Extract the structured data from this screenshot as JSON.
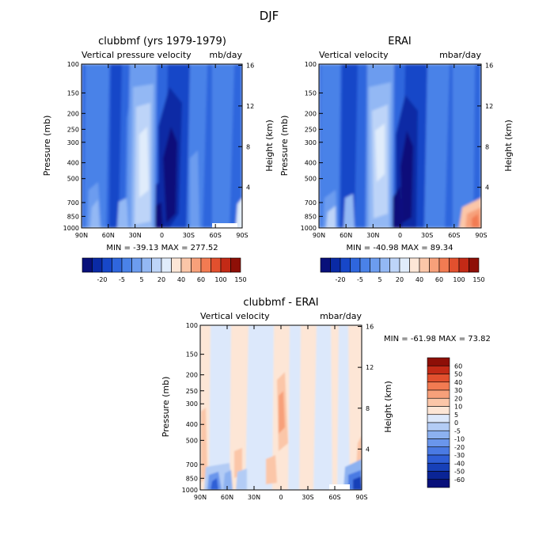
{
  "figure": {
    "title": "DJF"
  },
  "chart_data": [
    {
      "type": "heatmap",
      "title": "clubbmf (yrs 1979-1979)",
      "subtitle_left": "Vertical pressure velocity",
      "subtitle_right": "mb/day",
      "xlabel": "",
      "ylabel": "Pressure (mb)",
      "ylabel_right": "Height (km)",
      "x_ticks": [
        "90N",
        "60N",
        "30N",
        "0",
        "30S",
        "60S",
        "90S"
      ],
      "y_ticks": [
        100,
        150,
        200,
        250,
        300,
        400,
        500,
        700,
        850,
        1000
      ],
      "y2_ticks": [
        4,
        8,
        12,
        16
      ],
      "xlim": [
        "90N",
        "90S"
      ],
      "ylim": [
        1000,
        100
      ],
      "y_scale": "log",
      "stats": "MIN = -39.13   MAX = 277.52",
      "colorbar_labels": [
        "-20",
        "-5",
        "5",
        "20",
        "40",
        "60",
        "100",
        "150"
      ]
    },
    {
      "type": "heatmap",
      "title": "ERAI",
      "subtitle_left": "Vertical velocity",
      "subtitle_right": "mbar/day",
      "xlabel": "",
      "ylabel": "Pressure (mb)",
      "ylabel_right": "Height (km)",
      "x_ticks": [
        "90N",
        "60N",
        "30N",
        "0",
        "30S",
        "60S",
        "90S"
      ],
      "y_ticks": [
        100,
        150,
        200,
        250,
        300,
        400,
        500,
        700,
        850,
        1000
      ],
      "y2_ticks": [
        4,
        8,
        12,
        16
      ],
      "xlim": [
        "90N",
        "90S"
      ],
      "ylim": [
        1000,
        100
      ],
      "y_scale": "log",
      "stats": "MIN = -40.98   MAX =  89.34",
      "colorbar_labels": [
        "-20",
        "-5",
        "5",
        "20",
        "40",
        "60",
        "100",
        "150"
      ]
    },
    {
      "type": "heatmap",
      "title": "clubbmf - ERAI",
      "subtitle_left": "Vertical velocity",
      "subtitle_right": "mbar/day",
      "xlabel": "",
      "ylabel": "Pressure (mb)",
      "ylabel_right": "Height (km)",
      "x_ticks": [
        "90N",
        "60N",
        "30N",
        "0",
        "30S",
        "60S",
        "90S"
      ],
      "y_ticks": [
        100,
        150,
        200,
        250,
        300,
        400,
        500,
        700,
        850,
        1000
      ],
      "y2_ticks": [
        4,
        8,
        12,
        16
      ],
      "xlim": [
        "90N",
        "90S"
      ],
      "ylim": [
        1000,
        100
      ],
      "y_scale": "log",
      "stats": "MIN = -61.98   MAX =   73.82",
      "colorbar_labels": [
        "60",
        "50",
        "40",
        "30",
        "20",
        "10",
        "5",
        "0",
        "-5",
        "-10",
        "-20",
        "-30",
        "-40",
        "-50",
        "-60"
      ]
    }
  ],
  "colors": {
    "abs_scale": [
      "#08107a",
      "#0a2aa5",
      "#1747c8",
      "#2f66dd",
      "#4a82e8",
      "#6c9cef",
      "#93b8f4",
      "#bdd4f8",
      "#e0ecfb",
      "#fde6d6",
      "#fbc6a8",
      "#f7a07a",
      "#f27b52",
      "#e2502e",
      "#c32a16",
      "#8e0f07"
    ],
    "diff_scale": [
      "#8e0f07",
      "#c32a16",
      "#e2502e",
      "#f27b52",
      "#f7a07a",
      "#fbc6a8",
      "#fde6d6",
      "#dce8fb",
      "#b3ccf5",
      "#8cb1f0",
      "#6a96ec",
      "#4a7ae3",
      "#2f5ed6",
      "#1740b8",
      "#0a2495",
      "#08107a"
    ]
  }
}
